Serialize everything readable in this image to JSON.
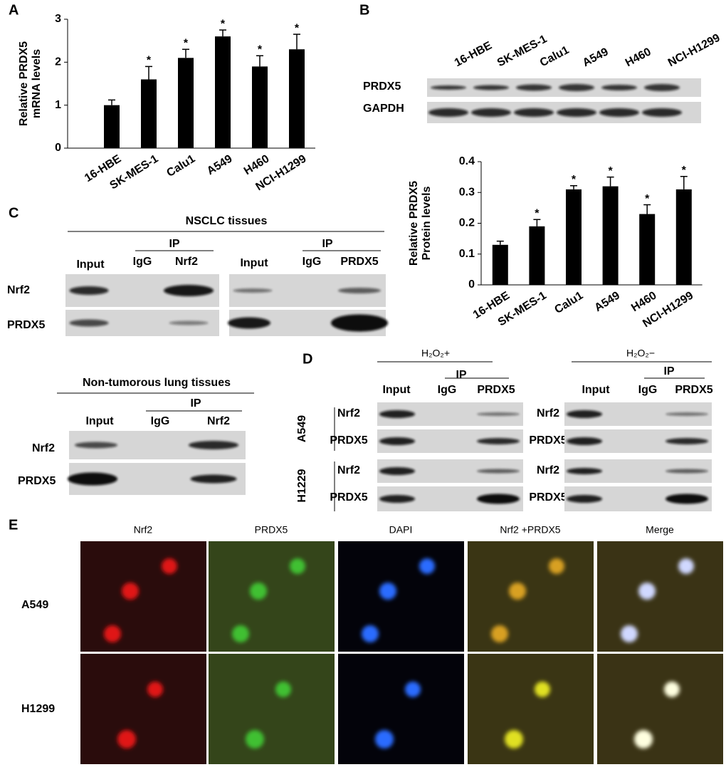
{
  "panel_labels": [
    "A",
    "B",
    "C",
    "D",
    "E"
  ],
  "chart_data": [
    {
      "type": "bar",
      "ylabel": [
        "Relative PRDX5",
        "mRNA levels"
      ],
      "categories": [
        "16-HBE",
        "SK-MES-1",
        "Calu1",
        "A549",
        "H460",
        "NCI-H1299"
      ],
      "values": [
        1.0,
        1.6,
        2.1,
        2.6,
        1.9,
        2.3
      ],
      "errors": [
        0.12,
        0.3,
        0.2,
        0.15,
        0.25,
        0.35
      ],
      "annotations": [
        null,
        "*",
        "*",
        "*",
        "*",
        "*"
      ],
      "color": "#000000",
      "ylim": [
        0,
        3
      ],
      "yticks": [
        0,
        1,
        2,
        3
      ]
    },
    {
      "type": "bar",
      "ylabel": [
        "Relative PRDX5",
        "Protein levels"
      ],
      "categories": [
        "16-HBE",
        "SK-MES-1",
        "Calu1",
        "A549",
        "H460",
        "NCI-H1299"
      ],
      "values": [
        0.13,
        0.19,
        0.31,
        0.32,
        0.23,
        0.31
      ],
      "errors": [
        0.012,
        0.022,
        0.012,
        0.03,
        0.03,
        0.042
      ],
      "annotations": [
        null,
        "*",
        "*",
        "*",
        "*",
        "*"
      ],
      "color": "#000000",
      "ylim": [
        0,
        0.4
      ],
      "yticks": [
        0,
        0.1,
        0.2,
        0.3,
        0.4
      ]
    }
  ],
  "blot_b": {
    "lanes": [
      "16-HBE",
      "SK-MES-1",
      "Calu1",
      "A549",
      "H460",
      "NCI-H1299"
    ],
    "rows": [
      "PRDX5",
      "GAPDH"
    ]
  },
  "panel_c": {
    "title": "NSCLC tissues",
    "rows": [
      "Nrf2",
      "PRDX5"
    ],
    "left": {
      "input": "Input",
      "ip": "IP",
      "lanes": [
        "IgG",
        "Nrf2"
      ]
    },
    "right": {
      "input": "Input",
      "ip": "IP",
      "lanes": [
        "IgG",
        "PRDX5"
      ]
    }
  },
  "panel_c2": {
    "title": "Non-tumorous lung tissues",
    "rows": [
      "Nrf2",
      "PRDX5"
    ],
    "input": "Input",
    "ip": "IP",
    "lanes": [
      "IgG",
      "Nrf2"
    ]
  },
  "panel_d": {
    "groups": [
      "A549",
      "H1229"
    ],
    "left": {
      "title": "H₂O₂+",
      "input": "Input",
      "ip": "IP",
      "lanes": [
        "IgG",
        "PRDX5"
      ],
      "rows": [
        "Nrf2",
        "PRDX5",
        "Nrf2",
        "PRDX5"
      ]
    },
    "right": {
      "title": "H₂O₂−",
      "input": "Input",
      "ip": "IP",
      "lanes": [
        "IgG",
        "PRDX5"
      ],
      "rows": [
        "Nrf2",
        "PRDX5",
        "Nrf2",
        "PRDX5"
      ]
    }
  },
  "panel_e": {
    "columns": [
      "Nrf2",
      "PRDX5",
      "DAPI",
      "Nrf2 +PRDX5",
      "Merge"
    ],
    "rows": [
      "A549",
      "H1299"
    ]
  }
}
